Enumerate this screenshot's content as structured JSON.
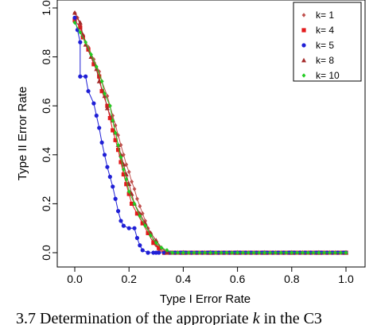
{
  "chart_data": {
    "type": "line",
    "xlabel": "Type I Error Rate",
    "ylabel": "Type II Error Rate",
    "xlim": [
      0.0,
      1.0
    ],
    "ylim": [
      0.0,
      1.0
    ],
    "xticks": [
      "0.0",
      "0.2",
      "0.4",
      "0.6",
      "0.8",
      "1.0"
    ],
    "yticks": [
      "0.0",
      "0.2",
      "0.4",
      "0.6",
      "0.8",
      "1.0"
    ],
    "grid": false,
    "legend_position": "top-right",
    "series": [
      {
        "name": "k= 1",
        "color": "#c0504d",
        "marker": "diamond",
        "points": [
          [
            0.0,
            0.98
          ],
          [
            0.01,
            0.96
          ],
          [
            0.02,
            0.93
          ],
          [
            0.03,
            0.89
          ],
          [
            0.05,
            0.84
          ],
          [
            0.07,
            0.79
          ],
          [
            0.09,
            0.74
          ],
          [
            0.1,
            0.7
          ],
          [
            0.12,
            0.64
          ],
          [
            0.13,
            0.6
          ],
          [
            0.14,
            0.56
          ],
          [
            0.15,
            0.52
          ],
          [
            0.16,
            0.48
          ],
          [
            0.17,
            0.44
          ],
          [
            0.18,
            0.4
          ],
          [
            0.19,
            0.36
          ],
          [
            0.2,
            0.33
          ],
          [
            0.21,
            0.29
          ],
          [
            0.22,
            0.26
          ],
          [
            0.23,
            0.22
          ],
          [
            0.24,
            0.19
          ],
          [
            0.25,
            0.16
          ],
          [
            0.26,
            0.13
          ],
          [
            0.27,
            0.1
          ],
          [
            0.28,
            0.08
          ],
          [
            0.29,
            0.05
          ],
          [
            0.3,
            0.03
          ],
          [
            0.31,
            0.01
          ],
          [
            0.33,
            0.0
          ],
          [
            0.4,
            0.0
          ],
          [
            0.5,
            0.0
          ],
          [
            0.6,
            0.0
          ],
          [
            0.7,
            0.0
          ],
          [
            0.8,
            0.0
          ],
          [
            0.9,
            0.0
          ],
          [
            1.0,
            0.0
          ]
        ]
      },
      {
        "name": "k= 4",
        "color": "#e31a1c",
        "marker": "square",
        "points": [
          [
            0.0,
            0.95
          ],
          [
            0.02,
            0.92
          ],
          [
            0.03,
            0.88
          ],
          [
            0.05,
            0.83
          ],
          [
            0.07,
            0.77
          ],
          [
            0.09,
            0.72
          ],
          [
            0.1,
            0.66
          ],
          [
            0.12,
            0.6
          ],
          [
            0.13,
            0.55
          ],
          [
            0.14,
            0.5
          ],
          [
            0.15,
            0.46
          ],
          [
            0.16,
            0.42
          ],
          [
            0.17,
            0.37
          ],
          [
            0.18,
            0.32
          ],
          [
            0.19,
            0.28
          ],
          [
            0.2,
            0.24
          ],
          [
            0.21,
            0.2
          ],
          [
            0.23,
            0.16
          ],
          [
            0.25,
            0.12
          ],
          [
            0.27,
            0.08
          ],
          [
            0.29,
            0.04
          ],
          [
            0.31,
            0.02
          ],
          [
            0.33,
            0.0
          ],
          [
            0.4,
            0.0
          ],
          [
            0.5,
            0.0
          ],
          [
            0.6,
            0.0
          ],
          [
            0.7,
            0.0
          ],
          [
            0.8,
            0.0
          ],
          [
            0.9,
            0.0
          ],
          [
            1.0,
            0.0
          ]
        ]
      },
      {
        "name": "k= 5",
        "color": "#1f1fd6",
        "marker": "circle",
        "points": [
          [
            0.0,
            0.96
          ],
          [
            0.01,
            0.91
          ],
          [
            0.02,
            0.86
          ],
          [
            0.02,
            0.72
          ],
          [
            0.04,
            0.72
          ],
          [
            0.05,
            0.66
          ],
          [
            0.07,
            0.61
          ],
          [
            0.08,
            0.56
          ],
          [
            0.09,
            0.51
          ],
          [
            0.1,
            0.45
          ],
          [
            0.11,
            0.4
          ],
          [
            0.12,
            0.35
          ],
          [
            0.13,
            0.31
          ],
          [
            0.14,
            0.27
          ],
          [
            0.15,
            0.22
          ],
          [
            0.16,
            0.17
          ],
          [
            0.17,
            0.13
          ],
          [
            0.18,
            0.11
          ],
          [
            0.2,
            0.1
          ],
          [
            0.22,
            0.1
          ],
          [
            0.23,
            0.06
          ],
          [
            0.24,
            0.03
          ],
          [
            0.25,
            0.01
          ],
          [
            0.27,
            0.0
          ],
          [
            0.3,
            0.0
          ],
          [
            0.4,
            0.0
          ],
          [
            0.5,
            0.0
          ],
          [
            0.6,
            0.0
          ],
          [
            0.7,
            0.0
          ],
          [
            0.8,
            0.0
          ],
          [
            0.9,
            0.0
          ],
          [
            1.0,
            0.0
          ]
        ]
      },
      {
        "name": "k= 8",
        "color": "#a52a2a",
        "marker": "triangle",
        "points": [
          [
            0.0,
            0.98
          ],
          [
            0.02,
            0.94
          ],
          [
            0.03,
            0.89
          ],
          [
            0.04,
            0.85
          ],
          [
            0.06,
            0.8
          ],
          [
            0.08,
            0.75
          ],
          [
            0.09,
            0.7
          ],
          [
            0.11,
            0.64
          ],
          [
            0.12,
            0.59
          ],
          [
            0.14,
            0.54
          ],
          [
            0.15,
            0.49
          ],
          [
            0.16,
            0.44
          ],
          [
            0.17,
            0.4
          ],
          [
            0.18,
            0.36
          ],
          [
            0.19,
            0.32
          ],
          [
            0.2,
            0.28
          ],
          [
            0.21,
            0.24
          ],
          [
            0.22,
            0.2
          ],
          [
            0.24,
            0.16
          ],
          [
            0.26,
            0.12
          ],
          [
            0.28,
            0.08
          ],
          [
            0.3,
            0.05
          ],
          [
            0.32,
            0.02
          ],
          [
            0.34,
            0.0
          ],
          [
            0.4,
            0.0
          ],
          [
            0.5,
            0.0
          ],
          [
            0.6,
            0.0
          ],
          [
            0.7,
            0.0
          ],
          [
            0.8,
            0.0
          ],
          [
            0.9,
            0.0
          ],
          [
            1.0,
            0.0
          ]
        ]
      },
      {
        "name": "k= 10",
        "color": "#22cc22",
        "marker": "diamond",
        "points": [
          [
            0.0,
            0.94
          ],
          [
            0.02,
            0.9
          ],
          [
            0.04,
            0.86
          ],
          [
            0.06,
            0.81
          ],
          [
            0.08,
            0.76
          ],
          [
            0.1,
            0.7
          ],
          [
            0.11,
            0.65
          ],
          [
            0.13,
            0.6
          ],
          [
            0.14,
            0.54
          ],
          [
            0.15,
            0.49
          ],
          [
            0.16,
            0.44
          ],
          [
            0.17,
            0.39
          ],
          [
            0.18,
            0.34
          ],
          [
            0.19,
            0.3
          ],
          [
            0.2,
            0.25
          ],
          [
            0.22,
            0.2
          ],
          [
            0.24,
            0.15
          ],
          [
            0.26,
            0.11
          ],
          [
            0.28,
            0.07
          ],
          [
            0.3,
            0.04
          ],
          [
            0.32,
            0.02
          ],
          [
            0.34,
            0.01
          ],
          [
            0.36,
            0.0
          ],
          [
            0.4,
            0.0
          ],
          [
            0.5,
            0.0
          ],
          [
            0.6,
            0.0
          ],
          [
            0.7,
            0.0
          ],
          [
            0.8,
            0.0
          ],
          [
            0.9,
            0.0
          ],
          [
            1.0,
            0.0
          ]
        ]
      }
    ]
  },
  "caption": {
    "before": "3.7 Determination of the appropriate ",
    "italic": "k",
    "after": " in the C3"
  }
}
